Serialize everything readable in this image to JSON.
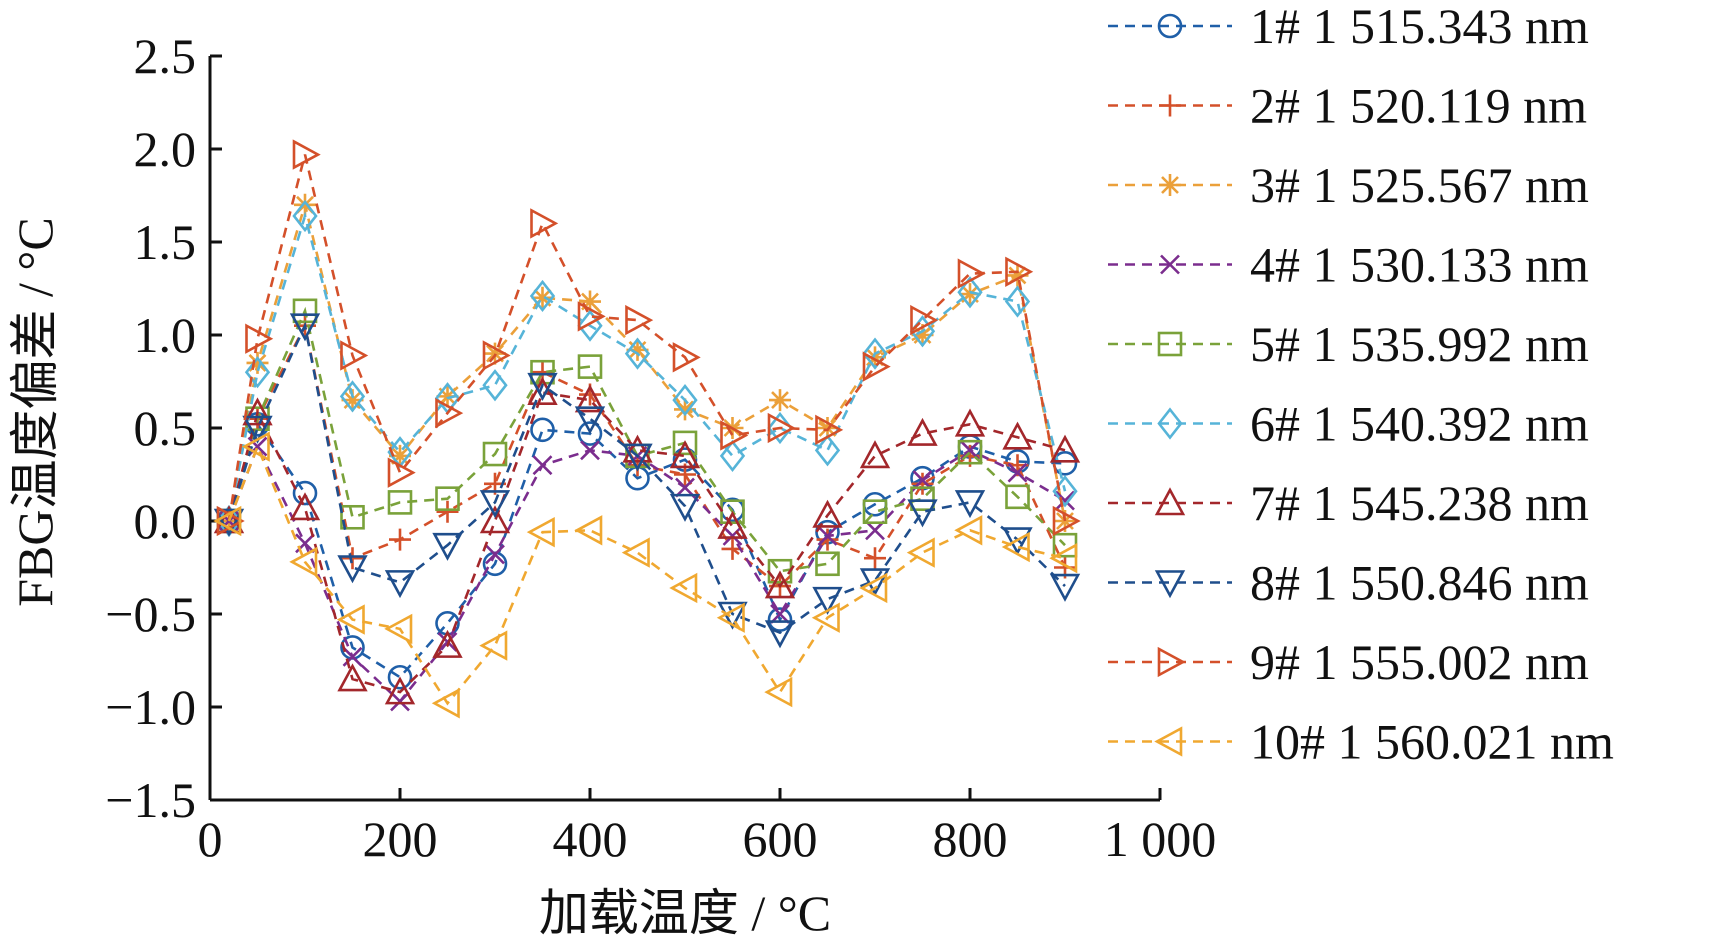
{
  "chart_data": {
    "type": "line",
    "title": "",
    "xlabel": "加载温度 / °C",
    "ylabel": "FBG温度偏差 / °C",
    "xlim": [
      0,
      1000
    ],
    "ylim": [
      -1.5,
      2.5
    ],
    "x_ticks": [
      0,
      200,
      400,
      600,
      800,
      1000
    ],
    "x_tick_labels": [
      "0",
      "200",
      "400",
      "600",
      "800",
      "1 000"
    ],
    "y_ticks": [
      -1.5,
      -1.0,
      -0.5,
      0.0,
      0.5,
      1.0,
      1.5,
      2.0,
      2.5
    ],
    "y_tick_labels": [
      "−1.5",
      "−1.0",
      "−0.5",
      "0.0",
      "0.5",
      "1.0",
      "1.5",
      "2.0",
      "2.5"
    ],
    "grid": false,
    "legend_position": "outside-right",
    "line_style": "dashed",
    "x": [
      20,
      50,
      100,
      150,
      200,
      250,
      300,
      350,
      400,
      450,
      500,
      550,
      600,
      650,
      700,
      750,
      800,
      850,
      900
    ],
    "series": [
      {
        "name": "1# 1 515.343 nm",
        "marker": "circle",
        "color": "#1f5fa8",
        "values": [
          0.0,
          0.52,
          0.15,
          -0.68,
          -0.84,
          -0.55,
          -0.23,
          0.49,
          0.47,
          0.23,
          0.33,
          0.06,
          -0.53,
          -0.06,
          0.09,
          0.23,
          0.4,
          0.32,
          0.31
        ]
      },
      {
        "name": "2# 1 520.119 nm",
        "marker": "plus",
        "color": "#d4502a",
        "values": [
          0.0,
          0.55,
          1.05,
          -0.2,
          -0.1,
          0.05,
          0.2,
          0.8,
          0.68,
          0.3,
          0.25,
          -0.15,
          -0.35,
          -0.1,
          -0.2,
          0.2,
          0.35,
          0.3,
          -0.25
        ]
      },
      {
        "name": "3# 1 525.567 nm",
        "marker": "asterisk",
        "color": "#eba03a",
        "values": [
          0.0,
          0.85,
          1.7,
          0.65,
          0.35,
          0.67,
          0.9,
          1.2,
          1.18,
          0.92,
          0.6,
          0.5,
          0.65,
          0.5,
          0.88,
          1.0,
          1.22,
          1.32,
          0.0
        ]
      },
      {
        "name": "4# 1 530.133 nm",
        "marker": "x",
        "color": "#7b2d8e",
        "values": [
          0.0,
          0.4,
          -0.12,
          -0.73,
          -0.97,
          -0.65,
          -0.18,
          0.3,
          0.38,
          0.35,
          0.18,
          -0.08,
          -0.5,
          -0.08,
          -0.05,
          0.22,
          0.38,
          0.26,
          0.11
        ]
      },
      {
        "name": "5# 1 535.992 nm",
        "marker": "square",
        "color": "#7aa23a",
        "values": [
          0.0,
          0.55,
          1.13,
          0.02,
          0.1,
          0.12,
          0.36,
          0.8,
          0.83,
          0.35,
          0.42,
          0.05,
          -0.27,
          -0.23,
          0.05,
          0.12,
          0.37,
          0.13,
          -0.13
        ]
      },
      {
        "name": "6# 1 540.392 nm",
        "marker": "diamond",
        "color": "#56b4d8",
        "values": [
          0.0,
          0.8,
          1.64,
          0.67,
          0.37,
          0.66,
          0.73,
          1.21,
          1.05,
          0.9,
          0.65,
          0.35,
          0.5,
          0.38,
          0.9,
          1.02,
          1.23,
          1.18,
          0.16
        ]
      },
      {
        "name": "7# 1 545.238 nm",
        "marker": "triangle-up",
        "color": "#a3272b",
        "values": [
          0.0,
          0.58,
          0.07,
          -0.85,
          -0.92,
          -0.67,
          0.0,
          0.69,
          0.65,
          0.38,
          0.35,
          -0.03,
          -0.35,
          0.03,
          0.35,
          0.47,
          0.52,
          0.45,
          0.38
        ]
      },
      {
        "name": "8# 1 550.846 nm",
        "marker": "triangle-down",
        "color": "#1f4e8c",
        "values": [
          0.0,
          0.5,
          1.05,
          -0.25,
          -0.33,
          -0.13,
          0.1,
          0.73,
          0.55,
          0.35,
          0.08,
          -0.5,
          -0.6,
          -0.42,
          -0.32,
          0.05,
          0.1,
          -0.1,
          -0.35
        ]
      },
      {
        "name": "9# 1 555.002 nm",
        "marker": "triangle-right",
        "color": "#d4502a",
        "values": [
          0.0,
          0.98,
          1.97,
          0.89,
          0.26,
          0.58,
          0.89,
          1.6,
          1.1,
          1.08,
          0.88,
          0.46,
          0.5,
          0.49,
          0.83,
          1.08,
          1.33,
          1.34,
          0.0
        ]
      },
      {
        "name": "10# 1 560.021 nm",
        "marker": "triangle-left",
        "color": "#f0a830",
        "values": [
          0.0,
          0.4,
          -0.22,
          -0.53,
          -0.58,
          -0.98,
          -0.67,
          -0.06,
          -0.05,
          -0.17,
          -0.36,
          -0.52,
          -0.92,
          -0.52,
          -0.36,
          -0.17,
          -0.05,
          -0.14,
          -0.2
        ]
      }
    ]
  }
}
